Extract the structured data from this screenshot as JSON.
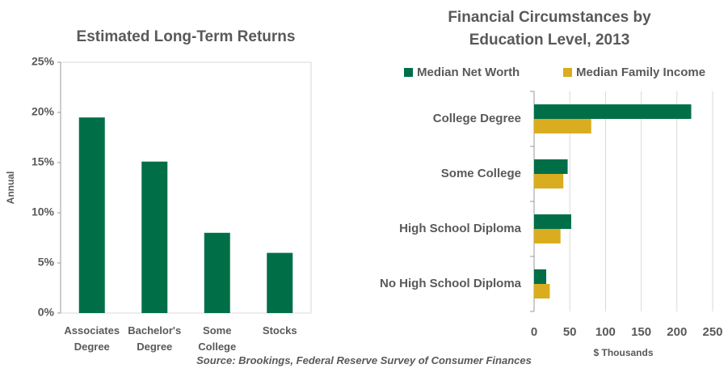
{
  "chart_data": [
    {
      "type": "bar",
      "title": "Estimated Long-Term Returns",
      "y_label": "Annual",
      "categories": [
        "Associates Degree",
        "Bachelor's Degree",
        "Some College",
        "Stocks"
      ],
      "values": [
        19.5,
        15.1,
        8,
        6
      ],
      "color": "#006f48",
      "ylim": [
        0,
        25
      ],
      "yticks": [
        {
          "value": 0,
          "label": "0%"
        },
        {
          "value": 5,
          "label": "5%"
        },
        {
          "value": 10,
          "label": "10%"
        },
        {
          "value": 15,
          "label": "15%"
        },
        {
          "value": 20,
          "label": "20%"
        },
        {
          "value": 25,
          "label": "25%"
        }
      ]
    },
    {
      "type": "barh",
      "title": "Financial Circumstances by Education Level, 2013",
      "x_label": "$ Thousands",
      "categories": [
        "College Degree",
        "Some College",
        "High School Diploma",
        "No High School Diploma"
      ],
      "series": [
        {
          "name": "Median Net Worth",
          "color": "#006f48",
          "values": [
            220,
            47,
            52,
            17
          ]
        },
        {
          "name": "Median Family Income",
          "color": "#d9ad1f",
          "values": [
            80,
            41,
            37,
            22
          ]
        }
      ],
      "xlim": [
        0,
        250
      ],
      "xticks": [
        0,
        50,
        100,
        150,
        200,
        250
      ],
      "grid": true,
      "legend": "top"
    }
  ],
  "source": "Source: Brookings, Federal Reserve Survey of Consumer Finances"
}
